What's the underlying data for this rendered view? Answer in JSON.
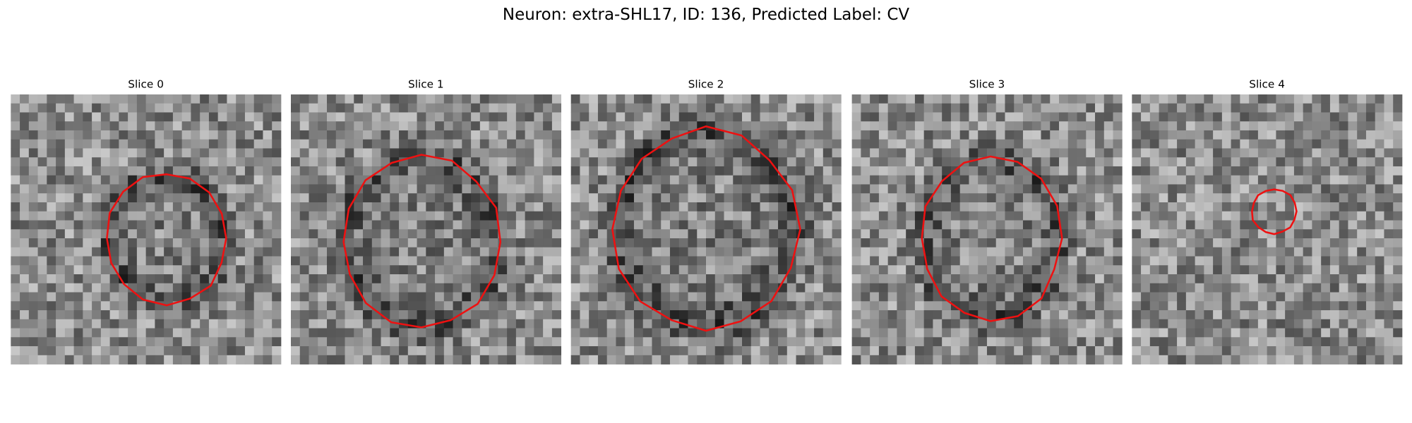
{
  "title": "Neuron: extra-SHL17, ID: 136, Predicted Label: CV",
  "panels": [
    {
      "title": "Slice 0"
    },
    {
      "title": "Slice 1"
    },
    {
      "title": "Slice 2"
    },
    {
      "title": "Slice 3"
    },
    {
      "title": "Slice 4"
    }
  ]
}
